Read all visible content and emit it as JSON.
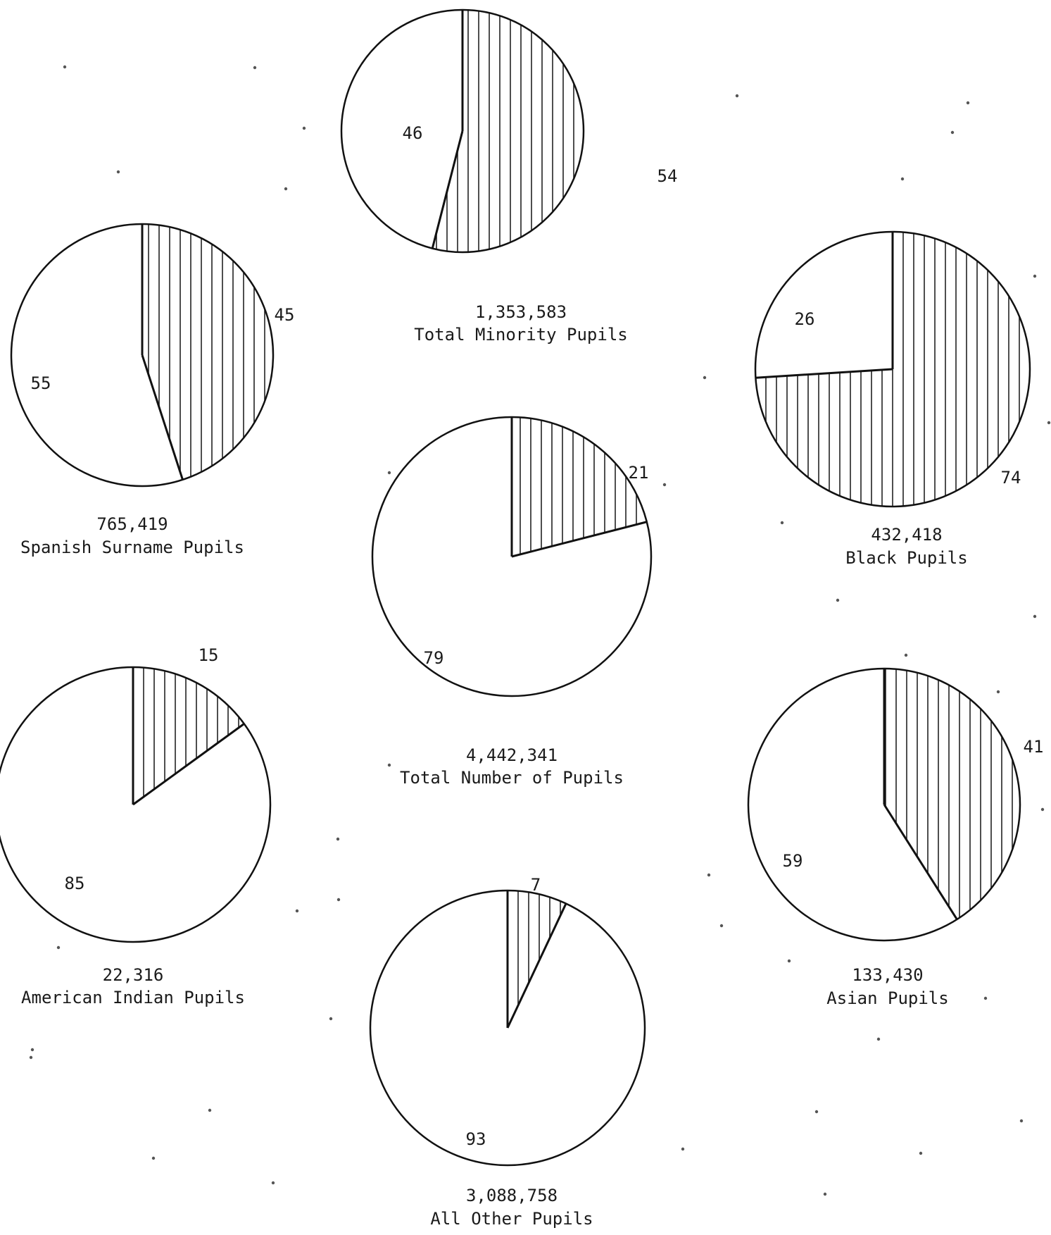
{
  "colors": {
    "ink": "#111111",
    "hatch": "#222222",
    "background": "#ffffff"
  },
  "chart_data": [
    {
      "type": "pie",
      "caption_count": "1,353,583",
      "caption_label": "Total Minority Pupils",
      "slices": [
        {
          "label": "54",
          "value": 54,
          "fill": "hatched"
        },
        {
          "label": "46",
          "value": 46,
          "fill": "blank"
        }
      ]
    },
    {
      "type": "pie",
      "caption_count": "765,419",
      "caption_label": "Spanish Surname Pupils",
      "slices": [
        {
          "label": "45",
          "value": 45,
          "fill": "hatched"
        },
        {
          "label": "55",
          "value": 55,
          "fill": "blank"
        }
      ]
    },
    {
      "type": "pie",
      "caption_count": "432,418",
      "caption_label": "Black Pupils",
      "slices": [
        {
          "label": "74",
          "value": 74,
          "fill": "hatched"
        },
        {
          "label": "26",
          "value": 26,
          "fill": "blank"
        }
      ]
    },
    {
      "type": "pie",
      "caption_count": "4,442,341",
      "caption_label": "Total Number of Pupils",
      "slices": [
        {
          "label": "21",
          "value": 21,
          "fill": "hatched"
        },
        {
          "label": "79",
          "value": 79,
          "fill": "blank"
        }
      ]
    },
    {
      "type": "pie",
      "caption_count": "22,316",
      "caption_label": "American Indian Pupils",
      "slices": [
        {
          "label": "15",
          "value": 15,
          "fill": "hatched"
        },
        {
          "label": "85",
          "value": 85,
          "fill": "blank"
        }
      ]
    },
    {
      "type": "pie",
      "caption_count": "133,430",
      "caption_label": "Asian Pupils",
      "slices": [
        {
          "label": "41",
          "value": 41,
          "fill": "hatched"
        },
        {
          "label": "59",
          "value": 59,
          "fill": "blank"
        }
      ]
    },
    {
      "type": "pie",
      "caption_count": "3,088,758",
      "caption_label": "All Other Pupils",
      "slices": [
        {
          "label": "7",
          "value": 7,
          "fill": "hatched"
        },
        {
          "label": "93",
          "value": 93,
          "fill": "blank"
        }
      ]
    }
  ]
}
